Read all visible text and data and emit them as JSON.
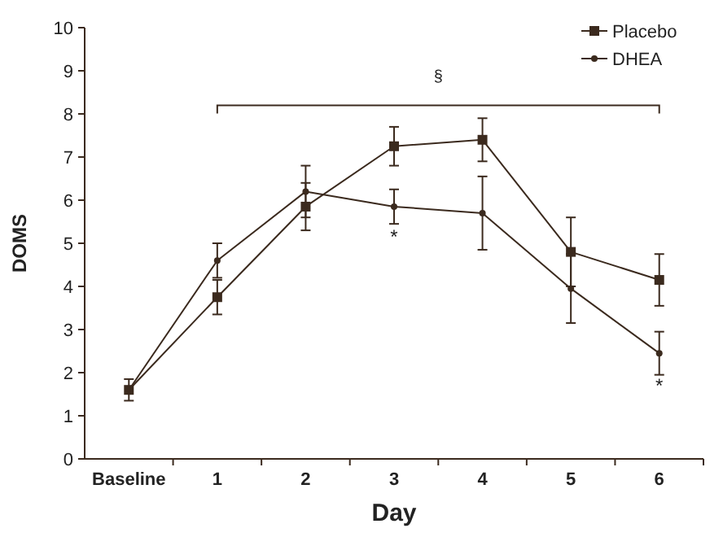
{
  "chart_data": {
    "type": "line",
    "xlabel": "Day",
    "ylabel": "DOMS",
    "categories": [
      "Baseline",
      "1",
      "2",
      "3",
      "4",
      "5",
      "6"
    ],
    "ylim": [
      0,
      10
    ],
    "yticks": [
      0,
      1,
      2,
      3,
      4,
      5,
      6,
      7,
      8,
      9,
      10
    ],
    "grid": false,
    "legend": "top right",
    "series": [
      {
        "name": "Placebo",
        "color": "#3b2a1e",
        "marker": "square",
        "values": [
          1.6,
          3.75,
          5.85,
          7.25,
          7.4,
          4.8,
          4.15
        ],
        "errors": [
          0.25,
          0.4,
          0.55,
          0.45,
          0.5,
          0.8,
          0.6
        ]
      },
      {
        "name": "DHEA",
        "color": "#3b2a1e",
        "marker": "circle",
        "values": [
          1.6,
          4.6,
          6.2,
          5.85,
          5.7,
          3.95,
          2.45
        ],
        "errors": [
          null,
          0.4,
          0.6,
          0.4,
          0.85,
          0.8,
          0.5
        ]
      }
    ],
    "annotations": [
      "§",
      "*",
      "*"
    ]
  }
}
